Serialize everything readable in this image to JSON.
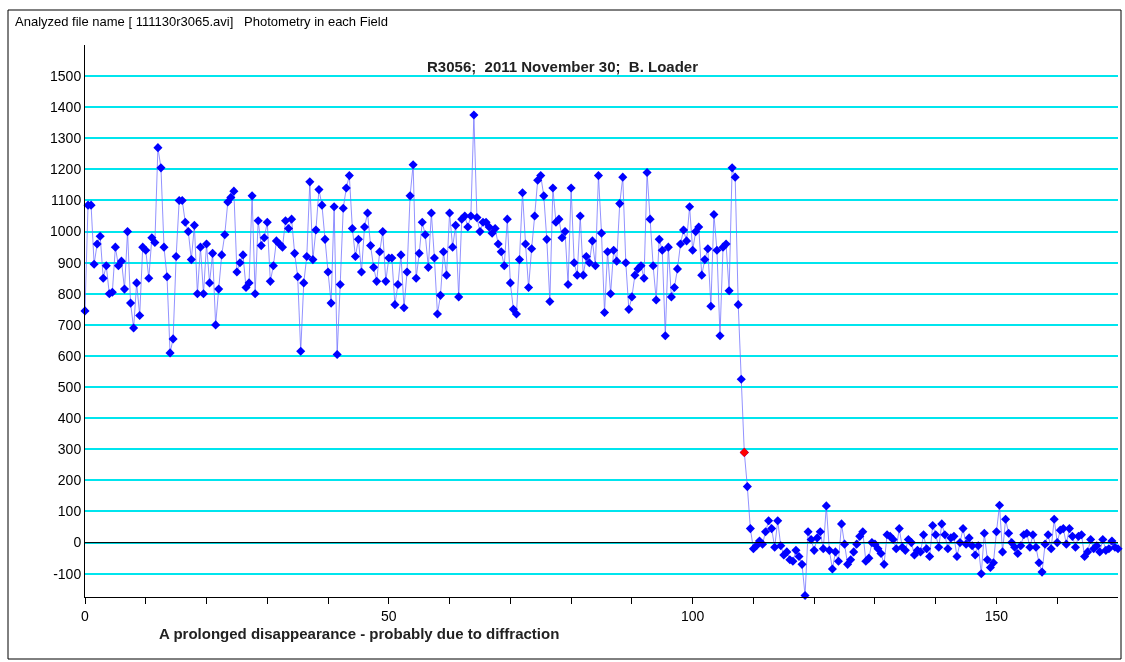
{
  "chart_data": {
    "type": "line",
    "title": "R3056;  2011 November 30;  B. Loader",
    "xlabel": "A prolonged disappearance - probably due to diffraction",
    "annotations": [
      "Analyzed file name [ 111130r3065.avi]   Photometry in each Field"
    ],
    "x": [
      0,
      0.5,
      1,
      1.5,
      2,
      2.5,
      3,
      3.5,
      4,
      4.5,
      5,
      5.5,
      6,
      6.5,
      7,
      7.5,
      8,
      8.5,
      9,
      9.5,
      10,
      10.5,
      11,
      11.5,
      12,
      12.5,
      13,
      13.5,
      14,
      14.5,
      15,
      15.5,
      16,
      16.5,
      17,
      17.5,
      18,
      18.5,
      19,
      19.5,
      20,
      20.5,
      21,
      21.5,
      22,
      22.5,
      23,
      23.5,
      24,
      24.5,
      25,
      25.5,
      26,
      26.5,
      27,
      27.5,
      28,
      28.5,
      29,
      29.5,
      30,
      30.5,
      31,
      31.5,
      32,
      32.5,
      33,
      33.5,
      34,
      34.5,
      35,
      35.5,
      36,
      36.5,
      37,
      37.5,
      38,
      38.5,
      39,
      39.5,
      40,
      40.5,
      41,
      41.5,
      42,
      42.5,
      43,
      43.5,
      44,
      44.5,
      45,
      45.5,
      46,
      46.5,
      47,
      47.5,
      48,
      48.5,
      49,
      49.5,
      50,
      50.5,
      51,
      51.5,
      52,
      52.5,
      53,
      53.5,
      54,
      54.5,
      55,
      55.5,
      56,
      56.5,
      57,
      57.5,
      58,
      58.5,
      59,
      59.5,
      60,
      60.5,
      61,
      61.5,
      62,
      62.5,
      63,
      63.5,
      64,
      64.5,
      65,
      65.5,
      66,
      66.5,
      67,
      67.5,
      68,
      68.5,
      69,
      69.5,
      70,
      70.5,
      71,
      71.5,
      72,
      72.5,
      73,
      73.5,
      74,
      74.5,
      75,
      75.5,
      76,
      76.5,
      77,
      77.5,
      78,
      78.5,
      79,
      79.5,
      80,
      80.5,
      81,
      81.5,
      82,
      82.5,
      83,
      83.5,
      84,
      84.5,
      85,
      85.5,
      86,
      86.5,
      87,
      87.5,
      88,
      88.5,
      89,
      89.5,
      90,
      90.5,
      91,
      91.5,
      92,
      92.5,
      93,
      93.5,
      94,
      94.5,
      95,
      95.5,
      96,
      96.5,
      97,
      97.5,
      98,
      98.5,
      99,
      99.5,
      100,
      100.5,
      101,
      101.5,
      102,
      102.5,
      103,
      103.5,
      104,
      104.5,
      105,
      105.5,
      106,
      106.5,
      107,
      107.5,
      108,
      108.5,
      109,
      109.5,
      110,
      110.5,
      111,
      111.5,
      112,
      112.5,
      113,
      113.5,
      114,
      114.5,
      115,
      115.5,
      116,
      116.5,
      117,
      117.5,
      118,
      118.5,
      119,
      119.5,
      120,
      120.5,
      121,
      121.5,
      122,
      122.5,
      123,
      123.5,
      124,
      124.5,
      125,
      125.5,
      126,
      126.5,
      127,
      127.5,
      128,
      128.5,
      129,
      129.5,
      130,
      130.5,
      131,
      131.5,
      132,
      132.5,
      133,
      133.5,
      134,
      134.5,
      135,
      135.5,
      136,
      136.5,
      137,
      137.5,
      138,
      138.5,
      139,
      139.5,
      140,
      140.5,
      141,
      141.5,
      142,
      142.5,
      143,
      143.5,
      144,
      144.5,
      145,
      145.5,
      146,
      146.5,
      147,
      147.5,
      148,
      148.5,
      149,
      149.5,
      150,
      150.5,
      151,
      151.5,
      152,
      152.5,
      153,
      153.5,
      154,
      154.5,
      155,
      155.5,
      156,
      156.5,
      157,
      157.5,
      158,
      158.5,
      159,
      159.5,
      160,
      160.5,
      161,
      161.5,
      162,
      162.5,
      163,
      163.5,
      164,
      164.5,
      165,
      165.5,
      166,
      166.5,
      167,
      167.5,
      168,
      168.5,
      169,
      169.5,
      170
    ],
    "series": [
      {
        "color": "#0000ff",
        "values": [
          745,
          1085,
          1085,
          895,
          960,
          985,
          850,
          890,
          800,
          805,
          950,
          890,
          905,
          815,
          1000,
          770,
          690,
          835,
          730,
          950,
          940,
          850,
          980,
          965,
          1270,
          1205,
          950,
          855,
          610,
          655,
          920,
          1100,
          1100,
          1030,
          1000,
          910,
          1020,
          800,
          950,
          800,
          960,
          835,
          930,
          700,
          815,
          925,
          990,
          1095,
          1110,
          1130,
          870,
          900,
          925,
          820,
          835,
          1115,
          800,
          1035,
          955,
          980,
          1030,
          840,
          890,
          970,
          960,
          950,
          1035,
          1010,
          1040,
          930,
          855,
          615,
          835,
          920,
          1160,
          910,
          1005,
          1135,
          1085,
          975,
          870,
          770,
          1080,
          605,
          830,
          1075,
          1140,
          1180,
          1010,
          920,
          975,
          870,
          1015,
          1060,
          955,
          885,
          840,
          935,
          1000,
          840,
          915,
          915,
          765,
          830,
          925,
          755,
          870,
          1115,
          1215,
          850,
          930,
          1030,
          990,
          885,
          1060,
          915,
          735,
          795,
          935,
          860,
          1060,
          950,
          1020,
          790,
          1040,
          1050,
          1015,
          1050,
          1375,
          1045,
          1000,
          1030,
          1030,
          1015,
          995,
          1010,
          960,
          935,
          890,
          1040,
          835,
          750,
          735,
          910,
          1125,
          960,
          820,
          945,
          1050,
          1165,
          1180,
          1115,
          975,
          775,
          1140,
          1030,
          1040,
          980,
          1000,
          830,
          1140,
          900,
          860,
          1050,
          860,
          920,
          900,
          970,
          890,
          1180,
          995,
          740,
          935,
          800,
          940,
          905,
          1090,
          1175,
          900,
          750,
          790,
          860,
          880,
          890,
          850,
          1190,
          1040,
          890,
          780,
          975,
          940,
          665,
          950,
          790,
          820,
          880,
          960,
          1005,
          970,
          1080,
          940,
          1000,
          1015,
          860,
          910,
          945,
          760,
          1055,
          940,
          665,
          950,
          960,
          810,
          1205,
          1175,
          765,
          525,
          290,
          180,
          45,
          -20,
          -10,
          5,
          -5,
          35,
          70,
          45,
          -15,
          70,
          -10,
          -40,
          -30,
          -55,
          -60,
          -25,
          -45,
          -70,
          -170,
          35,
          10,
          -25,
          15,
          35,
          -20,
          118,
          -25,
          -85,
          -30,
          -60,
          60,
          -5,
          -70,
          -55,
          -30,
          -5,
          20,
          35,
          -60,
          -50,
          0,
          -5,
          -20,
          -35,
          -70,
          25,
          20,
          10,
          -20,
          45,
          -15,
          -25,
          10,
          0,
          -40,
          -25,
          -30,
          25,
          -20,
          -45,
          55,
          25,
          -15,
          60,
          25,
          -20,
          15,
          20,
          -45,
          0,
          45,
          -5,
          15,
          -10,
          -40,
          -10,
          -100,
          30,
          -55,
          -80,
          -65,
          35,
          120,
          -30,
          75,
          30,
          0,
          -15,
          -35,
          -10,
          25,
          30,
          -15,
          25,
          -15,
          -65,
          -95,
          -5,
          25,
          -20,
          75,
          0,
          40,
          45,
          -5,
          45,
          20,
          -15,
          20,
          25,
          -45,
          -30,
          10,
          -20,
          -10,
          -30,
          10,
          -25,
          -20,
          5,
          -15,
          -20
        ]
      },
      {
        "color": "#ff0000",
        "type": "scatter",
        "x": [
          108.5
        ],
        "values": [
          290
        ]
      }
    ],
    "marker": "diamond",
    "xlim": [
      0,
      170
    ],
    "xticks": [
      0,
      {
        "value": 10,
        "label": null
      },
      {
        "value": 20,
        "label": null
      },
      {
        "value": 30,
        "label": null
      },
      {
        "value": 40,
        "label": null
      },
      50,
      {
        "value": 60,
        "label": null
      },
      {
        "value": 70,
        "label": null
      },
      {
        "value": 80,
        "label": null
      },
      {
        "value": 90,
        "label": null
      },
      100,
      {
        "value": 110,
        "label": null
      },
      {
        "value": 120,
        "label": null
      },
      {
        "value": 130,
        "label": null
      },
      {
        "value": 140,
        "label": null
      },
      150,
      {
        "value": 160,
        "label": null
      }
    ],
    "ylim": [
      -175,
      1600
    ],
    "yticks": [
      -100,
      0,
      100,
      200,
      300,
      400,
      500,
      600,
      700,
      800,
      900,
      1000,
      1100,
      1200,
      1300,
      1400,
      1500
    ],
    "grid": "y",
    "ref_lines": [
      {
        "axis": "y",
        "value": 0,
        "color": "#000000"
      }
    ]
  }
}
